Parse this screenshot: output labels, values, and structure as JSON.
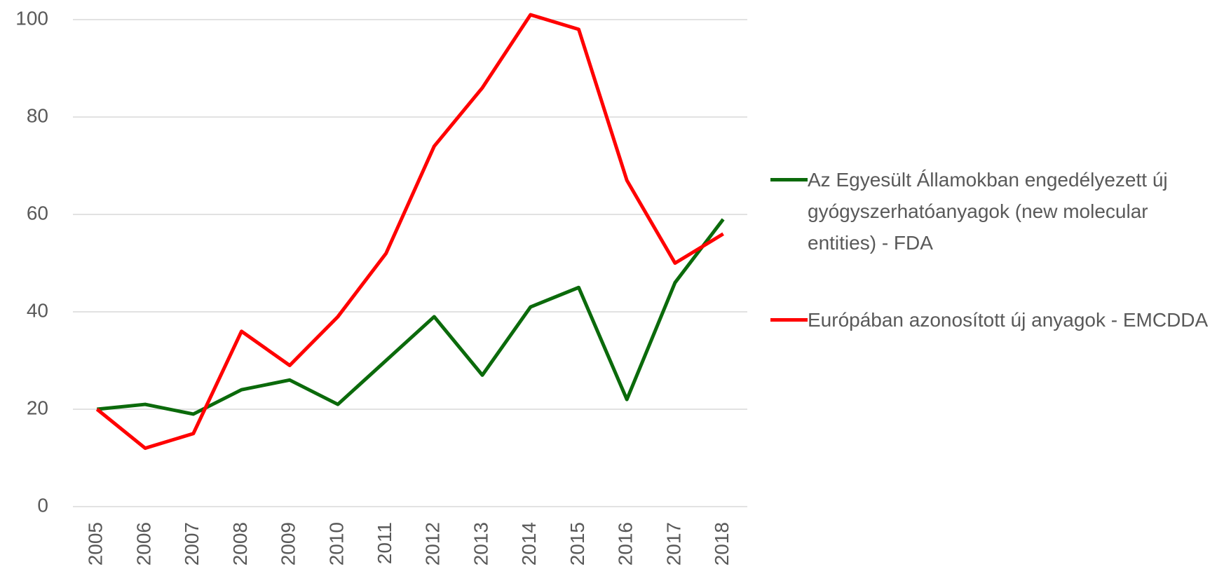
{
  "chart_data": {
    "type": "line",
    "categories": [
      "2005",
      "2006",
      "2007",
      "2008",
      "2009",
      "2010",
      "2011",
      "2012",
      "2013",
      "2014",
      "2015",
      "2016",
      "2017",
      "2018"
    ],
    "series": [
      {
        "name": "Az Egyesült Államokban engedélyezett új gyógyszerhatóanyagok (new molecular entities) - FDA",
        "color": "#0b6a0b",
        "values": [
          20,
          21,
          19,
          24,
          26,
          21,
          30,
          39,
          27,
          41,
          45,
          22,
          46,
          59
        ]
      },
      {
        "name": "Európában azonosított új anyagok - EMCDDA",
        "color": "#ff0000",
        "values": [
          20,
          12,
          15,
          36,
          29,
          39,
          52,
          74,
          86,
          101,
          98,
          67,
          50,
          56
        ]
      }
    ],
    "ylim": [
      0,
      100
    ],
    "yticks": [
      0,
      20,
      40,
      60,
      80,
      100
    ],
    "grid": true,
    "legend": "right"
  }
}
